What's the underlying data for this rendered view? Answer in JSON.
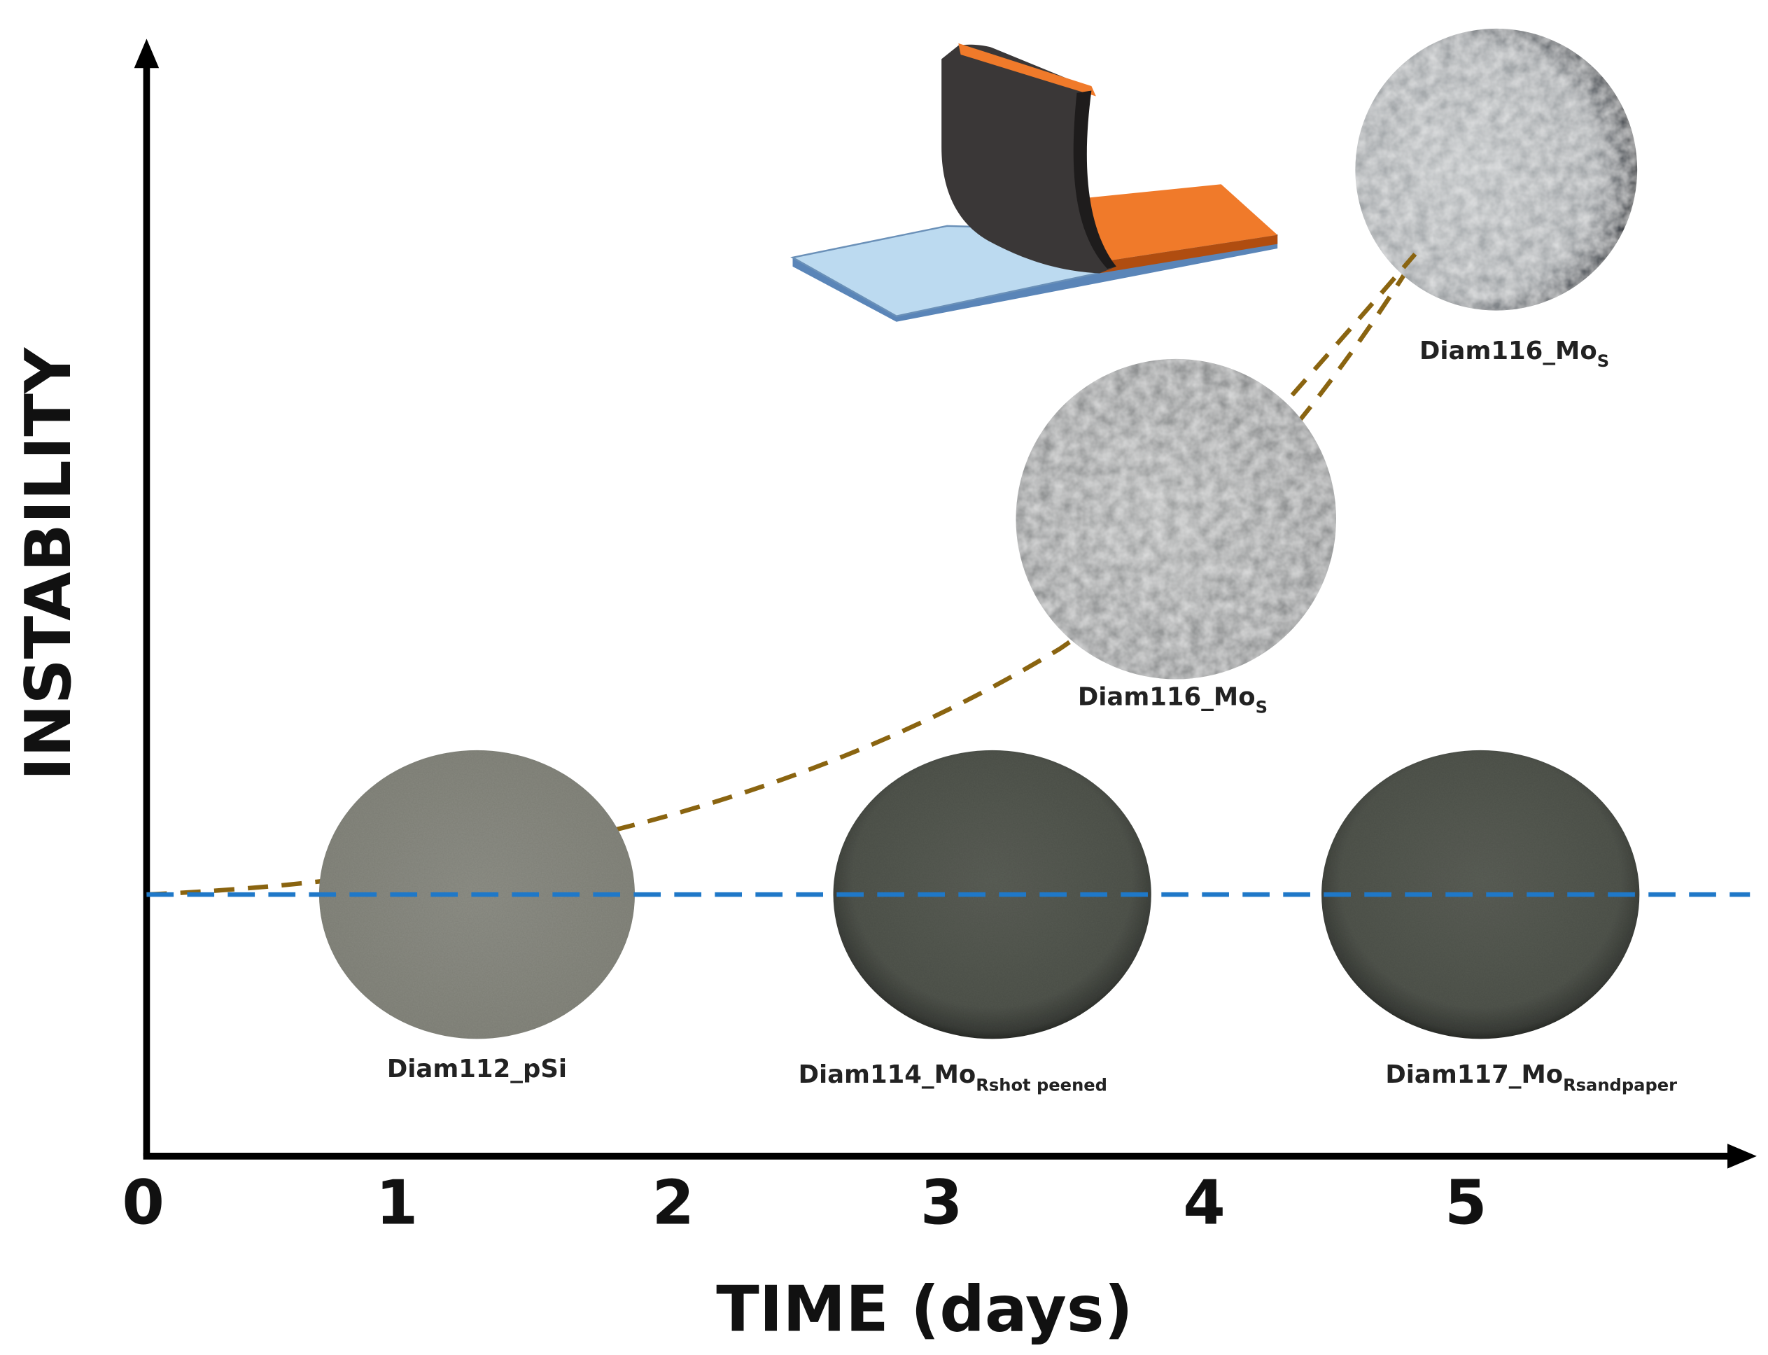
{
  "axes": {
    "x_title": "TIME (days)",
    "y_title": "INSTABILITY",
    "x_ticks": [
      "0",
      "1",
      "2",
      "3",
      "4",
      "5"
    ]
  },
  "samples": [
    {
      "base": "Diam112_pSi",
      "sub": ""
    },
    {
      "base": "Diam114_Mo",
      "sub": "Rshot peened"
    },
    {
      "base": "Diam117_Mo",
      "sub": "Rsandpaper"
    },
    {
      "base": "Diam116_Mo",
      "sub": "S"
    },
    {
      "base": "Diam116_Mo",
      "sub": "S"
    }
  ]
}
